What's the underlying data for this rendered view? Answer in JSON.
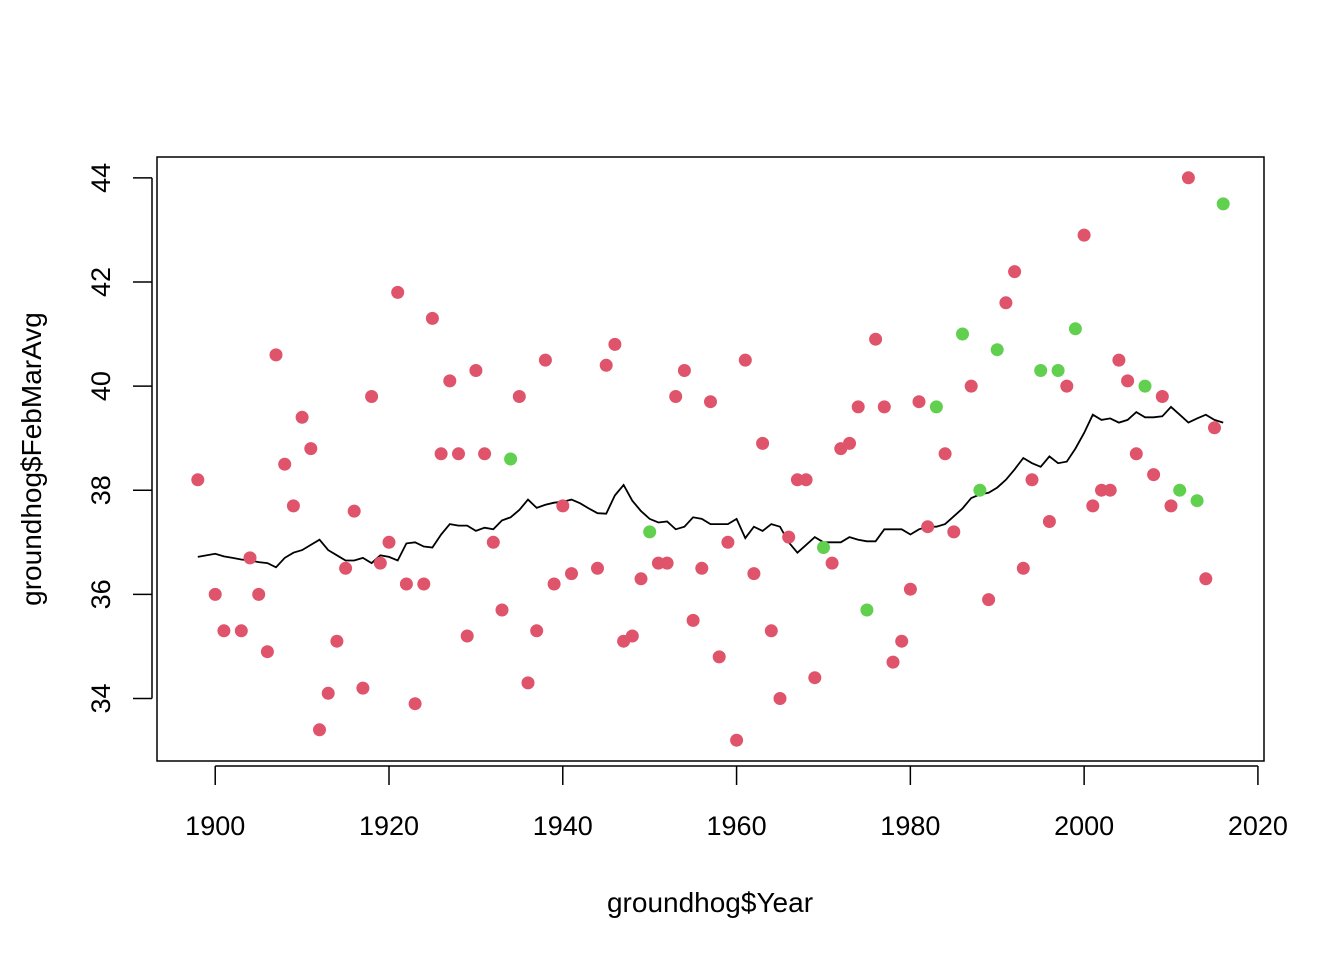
{
  "chart_data": {
    "type": "scatter",
    "title": "",
    "xlabel": "groundhog$Year",
    "ylabel": "groundhog$FebMarAvg",
    "xlim": [
      1893.3,
      2020.7
    ],
    "ylim": [
      32.8,
      44.4
    ],
    "x_ticks": [
      1900,
      1920,
      1940,
      1960,
      1980,
      2000,
      2020
    ],
    "y_ticks": [
      34,
      36,
      38,
      40,
      42,
      44
    ],
    "grid": false,
    "legend": "none",
    "colors": {
      "red_points": "#DF536B",
      "green_points": "#61D04F",
      "line": "#000000",
      "axes": "#000000"
    },
    "series": [
      {
        "color": "#DF536B",
        "points": [
          [
            1898,
            38.2
          ],
          [
            1900,
            36.0
          ],
          [
            1901,
            35.3
          ],
          [
            1903,
            35.3
          ],
          [
            1904,
            36.7
          ],
          [
            1905,
            36.0
          ],
          [
            1906,
            34.9
          ],
          [
            1907,
            40.6
          ],
          [
            1908,
            38.5
          ],
          [
            1909,
            37.7
          ],
          [
            1910,
            39.4
          ],
          [
            1911,
            38.8
          ],
          [
            1912,
            33.4
          ],
          [
            1913,
            34.1
          ],
          [
            1914,
            35.1
          ],
          [
            1915,
            36.5
          ],
          [
            1916,
            37.6
          ],
          [
            1917,
            34.2
          ],
          [
            1918,
            39.8
          ],
          [
            1919,
            36.6
          ],
          [
            1920,
            37.0
          ],
          [
            1921,
            41.8
          ],
          [
            1922,
            36.2
          ],
          [
            1923,
            33.9
          ],
          [
            1924,
            36.2
          ],
          [
            1925,
            41.3
          ],
          [
            1926,
            38.7
          ],
          [
            1927,
            40.1
          ],
          [
            1928,
            38.7
          ],
          [
            1929,
            35.2
          ],
          [
            1930,
            40.3
          ],
          [
            1931,
            38.7
          ],
          [
            1932,
            37.0
          ],
          [
            1933,
            35.7
          ],
          [
            1935,
            39.8
          ],
          [
            1936,
            34.3
          ],
          [
            1937,
            35.3
          ],
          [
            1938,
            40.5
          ],
          [
            1939,
            36.2
          ],
          [
            1940,
            37.7
          ],
          [
            1941,
            36.4
          ],
          [
            1944,
            36.5
          ],
          [
            1945,
            40.4
          ],
          [
            1946,
            40.8
          ],
          [
            1947,
            35.1
          ],
          [
            1948,
            35.2
          ],
          [
            1949,
            36.3
          ],
          [
            1951,
            36.6
          ],
          [
            1952,
            36.6
          ],
          [
            1953,
            39.8
          ],
          [
            1954,
            40.3
          ],
          [
            1955,
            35.5
          ],
          [
            1956,
            36.5
          ],
          [
            1957,
            39.7
          ],
          [
            1958,
            34.8
          ],
          [
            1959,
            37.0
          ],
          [
            1960,
            33.2
          ],
          [
            1961,
            40.5
          ],
          [
            1962,
            36.4
          ],
          [
            1963,
            38.9
          ],
          [
            1964,
            35.3
          ],
          [
            1965,
            34.0
          ],
          [
            1966,
            37.1
          ],
          [
            1967,
            38.2
          ],
          [
            1968,
            38.2
          ],
          [
            1969,
            34.4
          ],
          [
            1971,
            36.6
          ],
          [
            1972,
            38.8
          ],
          [
            1973,
            38.9
          ],
          [
            1974,
            39.6
          ],
          [
            1976,
            40.9
          ],
          [
            1977,
            39.6
          ],
          [
            1978,
            34.7
          ],
          [
            1979,
            35.1
          ],
          [
            1980,
            36.1
          ],
          [
            1981,
            39.7
          ],
          [
            1982,
            37.3
          ],
          [
            1984,
            38.7
          ],
          [
            1985,
            37.2
          ],
          [
            1987,
            40.0
          ],
          [
            1989,
            35.9
          ],
          [
            1991,
            41.6
          ],
          [
            1992,
            42.2
          ],
          [
            1993,
            36.5
          ],
          [
            1994,
            38.2
          ],
          [
            1996,
            37.4
          ],
          [
            1998,
            40.0
          ],
          [
            2000,
            42.9
          ],
          [
            2001,
            37.7
          ],
          [
            2002,
            38.0
          ],
          [
            2003,
            38.0
          ],
          [
            2004,
            40.5
          ],
          [
            2005,
            40.1
          ],
          [
            2006,
            38.7
          ],
          [
            2008,
            38.3
          ],
          [
            2009,
            39.8
          ],
          [
            2010,
            37.7
          ],
          [
            2012,
            44.0
          ],
          [
            2014,
            36.3
          ],
          [
            2015,
            39.2
          ]
        ]
      },
      {
        "color": "#61D04F",
        "points": [
          [
            1934,
            38.6
          ],
          [
            1950,
            37.2
          ],
          [
            1970,
            36.9
          ],
          [
            1975,
            35.7
          ],
          [
            1983,
            39.6
          ],
          [
            1986,
            41.0
          ],
          [
            1988,
            38.0
          ],
          [
            1990,
            40.7
          ],
          [
            1995,
            40.3
          ],
          [
            1997,
            40.3
          ],
          [
            1999,
            41.1
          ],
          [
            2007,
            40.0
          ],
          [
            2011,
            38.0
          ],
          [
            2013,
            37.8
          ],
          [
            2016,
            43.5
          ]
        ]
      },
      {
        "type": "line",
        "color": "#000000",
        "points": [
          [
            1898,
            36.72
          ],
          [
            1900,
            36.78
          ],
          [
            1901,
            36.73
          ],
          [
            1902,
            36.7
          ],
          [
            1903,
            36.67
          ],
          [
            1904,
            36.65
          ],
          [
            1905,
            36.62
          ],
          [
            1906,
            36.6
          ],
          [
            1907,
            36.52
          ],
          [
            1908,
            36.7
          ],
          [
            1909,
            36.8
          ],
          [
            1910,
            36.85
          ],
          [
            1911,
            36.95
          ],
          [
            1912,
            37.05
          ],
          [
            1913,
            36.85
          ],
          [
            1914,
            36.75
          ],
          [
            1915,
            36.65
          ],
          [
            1916,
            36.65
          ],
          [
            1917,
            36.7
          ],
          [
            1918,
            36.6
          ],
          [
            1919,
            36.75
          ],
          [
            1920,
            36.72
          ],
          [
            1921,
            36.65
          ],
          [
            1922,
            36.98
          ],
          [
            1923,
            37.0
          ],
          [
            1924,
            36.92
          ],
          [
            1925,
            36.9
          ],
          [
            1926,
            37.15
          ],
          [
            1927,
            37.35
          ],
          [
            1928,
            37.32
          ],
          [
            1929,
            37.32
          ],
          [
            1930,
            37.22
          ],
          [
            1931,
            37.28
          ],
          [
            1932,
            37.25
          ],
          [
            1933,
            37.42
          ],
          [
            1934,
            37.48
          ],
          [
            1935,
            37.62
          ],
          [
            1936,
            37.82
          ],
          [
            1937,
            37.66
          ],
          [
            1938,
            37.72
          ],
          [
            1939,
            37.76
          ],
          [
            1940,
            37.78
          ],
          [
            1941,
            37.82
          ],
          [
            1942,
            37.75
          ],
          [
            1943,
            37.65
          ],
          [
            1944,
            37.56
          ],
          [
            1945,
            37.55
          ],
          [
            1946,
            37.9
          ],
          [
            1947,
            38.1
          ],
          [
            1948,
            37.8
          ],
          [
            1949,
            37.6
          ],
          [
            1950,
            37.45
          ],
          [
            1951,
            37.38
          ],
          [
            1952,
            37.4
          ],
          [
            1953,
            37.25
          ],
          [
            1954,
            37.3
          ],
          [
            1955,
            37.48
          ],
          [
            1956,
            37.45
          ],
          [
            1957,
            37.35
          ],
          [
            1958,
            37.35
          ],
          [
            1959,
            37.35
          ],
          [
            1960,
            37.45
          ],
          [
            1961,
            37.08
          ],
          [
            1962,
            37.3
          ],
          [
            1963,
            37.22
          ],
          [
            1964,
            37.35
          ],
          [
            1965,
            37.3
          ],
          [
            1966,
            37.0
          ],
          [
            1967,
            36.8
          ],
          [
            1968,
            36.95
          ],
          [
            1969,
            37.1
          ],
          [
            1970,
            37.0
          ],
          [
            1971,
            37.0
          ],
          [
            1972,
            37.0
          ],
          [
            1973,
            37.1
          ],
          [
            1974,
            37.05
          ],
          [
            1975,
            37.02
          ],
          [
            1976,
            37.02
          ],
          [
            1977,
            37.25
          ],
          [
            1978,
            37.25
          ],
          [
            1979,
            37.25
          ],
          [
            1980,
            37.15
          ],
          [
            1981,
            37.25
          ],
          [
            1982,
            37.3
          ],
          [
            1983,
            37.3
          ],
          [
            1984,
            37.35
          ],
          [
            1985,
            37.5
          ],
          [
            1986,
            37.65
          ],
          [
            1987,
            37.85
          ],
          [
            1988,
            37.92
          ],
          [
            1989,
            37.95
          ],
          [
            1990,
            38.05
          ],
          [
            1991,
            38.2
          ],
          [
            1992,
            38.4
          ],
          [
            1993,
            38.62
          ],
          [
            1994,
            38.52
          ],
          [
            1995,
            38.45
          ],
          [
            1996,
            38.65
          ],
          [
            1997,
            38.52
          ],
          [
            1998,
            38.55
          ],
          [
            1999,
            38.8
          ],
          [
            2000,
            39.1
          ],
          [
            2001,
            39.45
          ],
          [
            2002,
            39.35
          ],
          [
            2003,
            39.38
          ],
          [
            2004,
            39.3
          ],
          [
            2005,
            39.35
          ],
          [
            2006,
            39.5
          ],
          [
            2007,
            39.4
          ],
          [
            2008,
            39.4
          ],
          [
            2009,
            39.42
          ],
          [
            2010,
            39.6
          ],
          [
            2011,
            39.45
          ],
          [
            2012,
            39.3
          ],
          [
            2013,
            39.38
          ],
          [
            2014,
            39.45
          ],
          [
            2015,
            39.35
          ],
          [
            2016,
            39.3
          ]
        ]
      }
    ]
  }
}
